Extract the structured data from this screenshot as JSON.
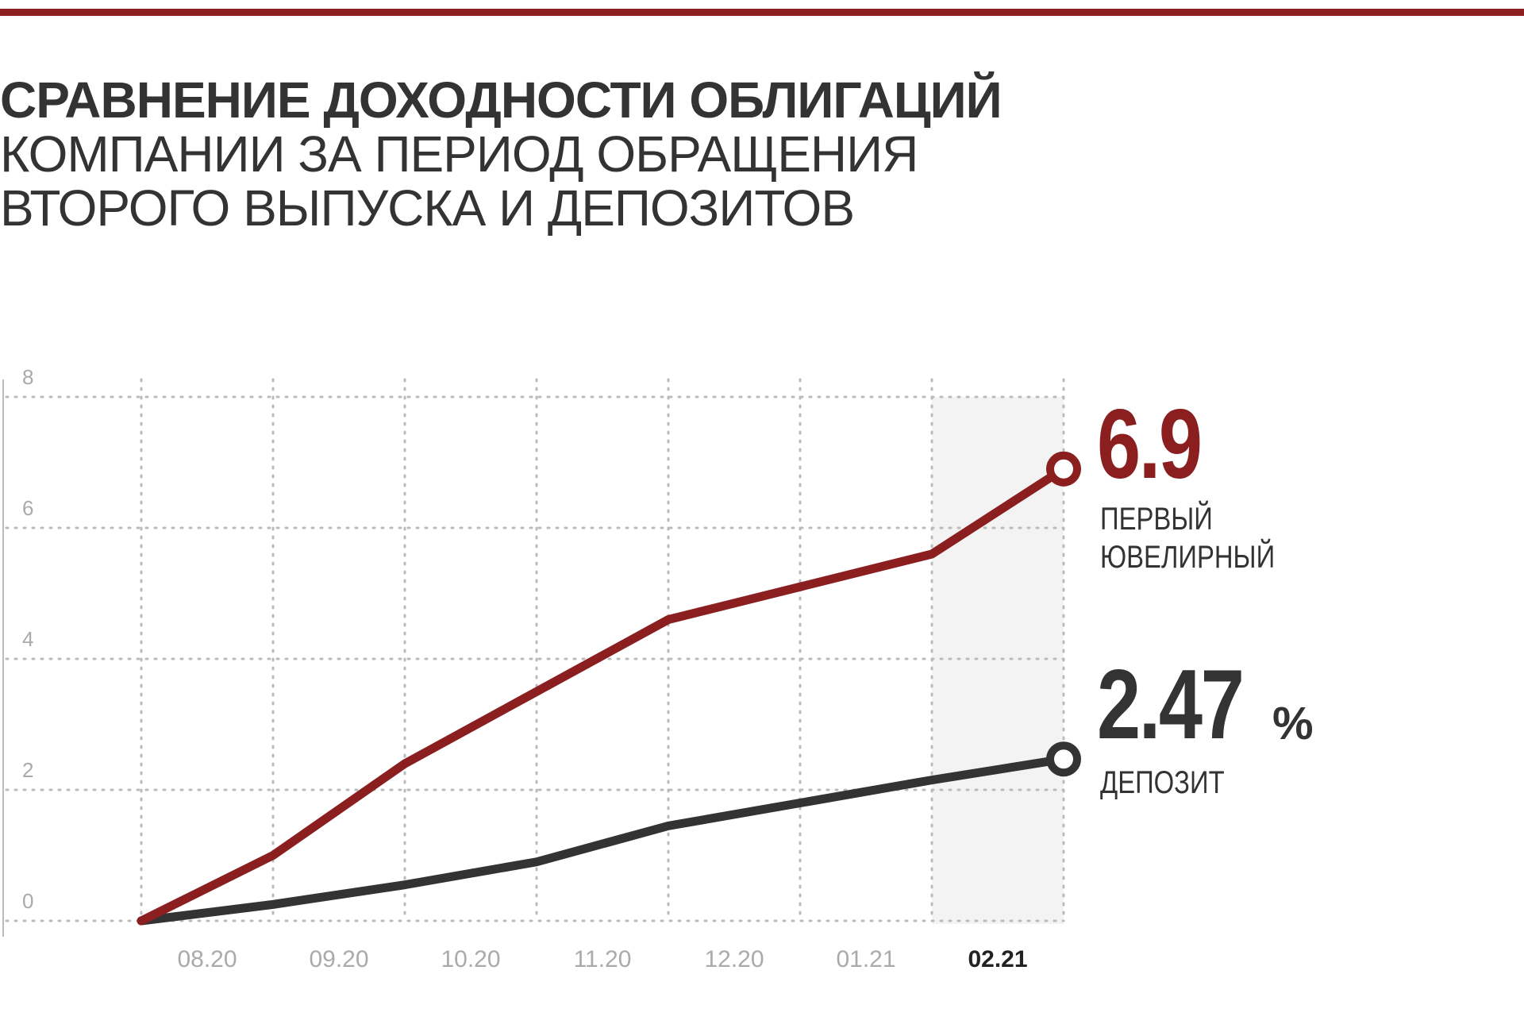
{
  "title": {
    "line1": "СРАВНЕНИЕ ДОХОДНОСТИ ОБЛИГАЦИЙ",
    "line2": "КОМПАНИИ ЗА ПЕРИОД ОБРАЩЕНИЯ",
    "line3": "ВТОРОГО ВЫПУСКА И ДЕПОЗИТОВ"
  },
  "colors": {
    "accent": "#8b1f20",
    "dark": "#333333",
    "grid": "#bbbbbb",
    "highlight_band": "#f3f3f3"
  },
  "legend": {
    "bond_value": "6.9",
    "bond_label_line1": "ПЕРВЫЙ",
    "bond_label_line2": "ЮВЕЛИРНЫЙ",
    "deposit_value": "2.47",
    "deposit_unit": "%",
    "deposit_label": "ДЕПОЗИТ"
  },
  "chart_data": {
    "type": "line",
    "x": [
      "",
      "08.20",
      "09.20",
      "10.20",
      "11.20",
      "12.20",
      "01.21",
      "02.21"
    ],
    "x_tick_labels": [
      "08.20",
      "09.20",
      "10.20",
      "11.20",
      "12.20",
      "01.21",
      "02.21"
    ],
    "highlighted_tick": "02.21",
    "y_ticks": [
      "0",
      "2",
      "4",
      "6",
      "8"
    ],
    "ylim": [
      0,
      8
    ],
    "grid": true,
    "series": [
      {
        "name": "ПЕРВЫЙ ЮВЕЛИРНЫЙ",
        "color": "#8b1f20",
        "values": [
          0,
          1.0,
          2.4,
          3.5,
          4.6,
          5.1,
          5.6,
          6.9
        ]
      },
      {
        "name": "ДЕПОЗИТ",
        "color": "#333333",
        "values": [
          0,
          0.25,
          0.55,
          0.9,
          1.45,
          1.8,
          2.15,
          2.47
        ]
      }
    ]
  }
}
